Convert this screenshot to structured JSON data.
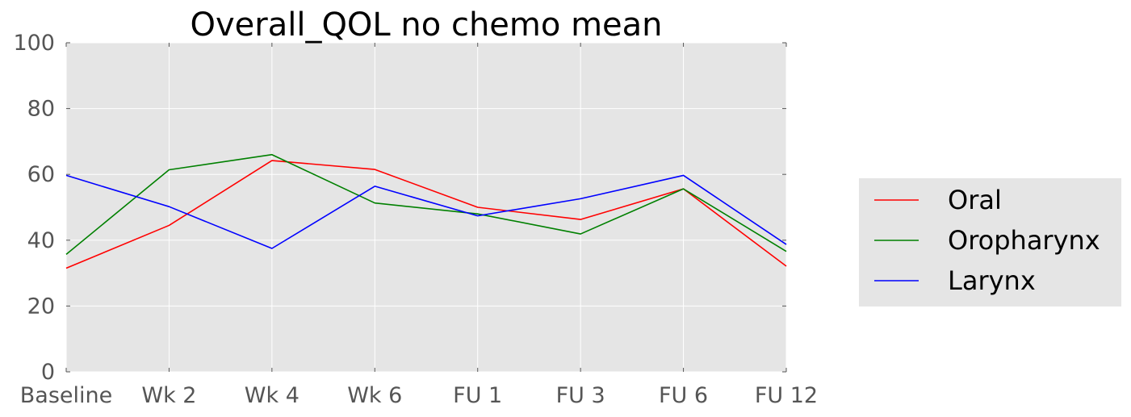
{
  "chart_data": {
    "type": "line",
    "title": "Overall_QOL no chemo  mean",
    "xlabel": "",
    "ylabel": "",
    "categories": [
      "Baseline",
      "Wk 2",
      "Wk 4",
      "Wk 6",
      "FU 1",
      "FU 3",
      "FU 6",
      "FU 12"
    ],
    "ylim": [
      0,
      100
    ],
    "yticks": [
      "0",
      "20",
      "40",
      "60",
      "80",
      "100"
    ],
    "grid": true,
    "legend_position": "center-right",
    "series": [
      {
        "name": "Oral",
        "color": "#ff0000",
        "values": [
          31.5,
          44.5,
          64.2,
          61.5,
          50.0,
          46.3,
          55.6,
          32.1
        ]
      },
      {
        "name": "Oropharynx",
        "color": "#008000",
        "values": [
          35.7,
          61.4,
          66.0,
          51.3,
          48.0,
          41.9,
          55.6,
          36.6
        ]
      },
      {
        "name": "Larynx",
        "color": "#0000ff",
        "values": [
          59.7,
          50.2,
          37.5,
          56.4,
          47.4,
          52.6,
          59.7,
          38.7
        ]
      }
    ],
    "background_color": "#e5e5e5",
    "legend_background": "#e5e5e5"
  }
}
